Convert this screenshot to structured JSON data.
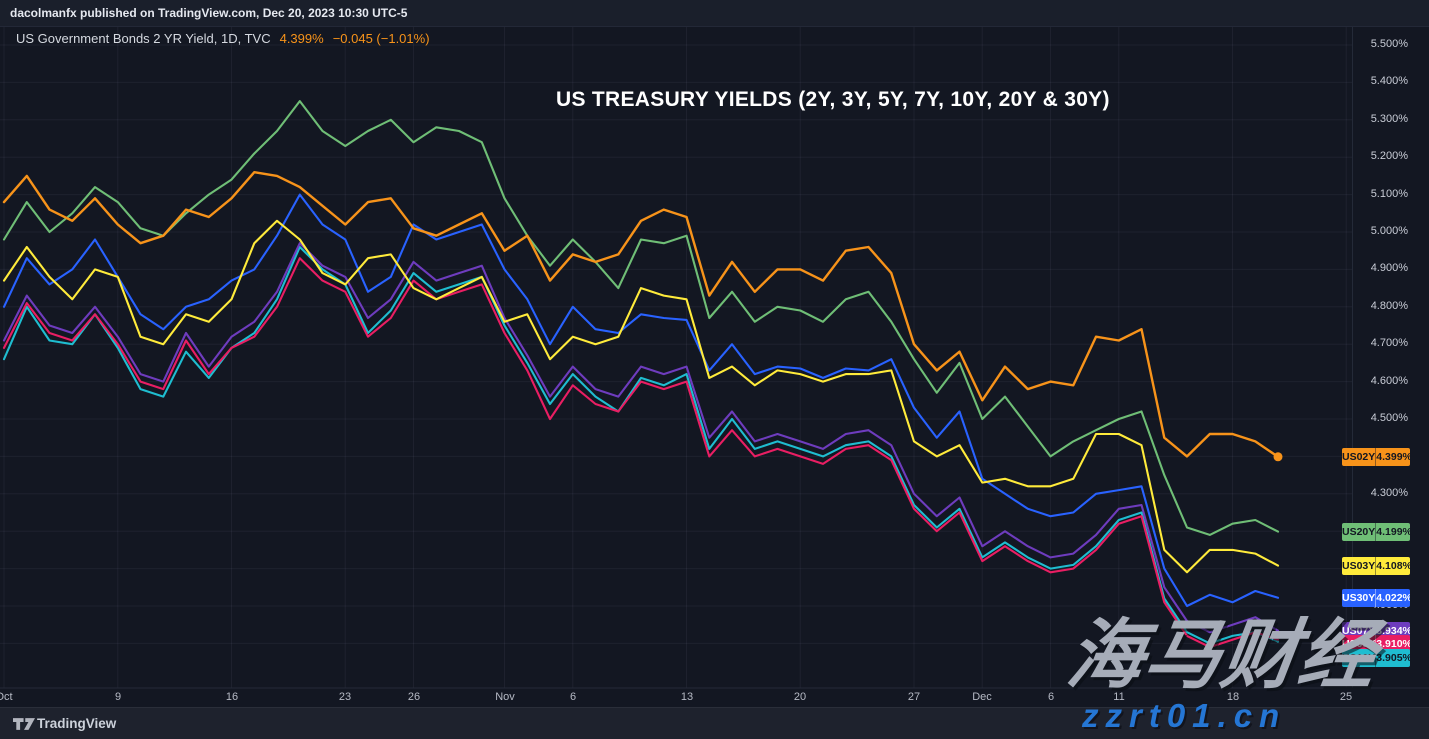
{
  "publish_bar": {
    "text": "dacolmanfx published on TradingView.com, Dec 20, 2023 10:30 UTC-5"
  },
  "chart_header": {
    "symbol": "US Government Bonds 2 YR Yield, 1D, TVC",
    "last_price": "4.399%",
    "change": "−0.045 (−1.01%)",
    "accent_color": "#f7931a"
  },
  "overlay_title": "US TREASURY YIELDS (2Y, 3Y, 5Y, 7Y, 10Y, 20Y & 30Y)",
  "watermark": {
    "title": "海马财经",
    "url_text": "zzrt01.cn"
  },
  "footer": {
    "brand": "TradingView",
    "logo_icon": "tradingview-logo"
  },
  "colors": {
    "background": "#131722",
    "top_bar": "#1a1f2b",
    "footer_bar": "#1e222d",
    "grid": "rgba(139,149,173,0.09)",
    "axis_text": "#c9cdd7"
  },
  "y_axis": {
    "unit": "%",
    "visible_labels": [
      {
        "label": "5.500%",
        "value": 5.5
      },
      {
        "label": "5.400%",
        "value": 5.4
      },
      {
        "label": "5.300%",
        "value": 5.3
      },
      {
        "label": "5.200%",
        "value": 5.2
      },
      {
        "label": "5.100%",
        "value": 5.1
      },
      {
        "label": "5.000%",
        "value": 5.0
      },
      {
        "label": "4.900%",
        "value": 4.9
      },
      {
        "label": "4.800%",
        "value": 4.8
      },
      {
        "label": "4.700%",
        "value": 4.7
      },
      {
        "label": "4.600%",
        "value": 4.6
      },
      {
        "label": "4.500%",
        "value": 4.5
      },
      {
        "label": "4.300%",
        "value": 4.3
      },
      {
        "label": "4.000%",
        "value": 4.0
      }
    ]
  },
  "x_axis": {
    "ticks": [
      {
        "label": "Oct",
        "day": 0
      },
      {
        "label": "9",
        "day": 5
      },
      {
        "label": "16",
        "day": 10
      },
      {
        "label": "23",
        "day": 15
      },
      {
        "label": "26",
        "day": 18
      },
      {
        "label": "Nov",
        "day": 22
      },
      {
        "label": "6",
        "day": 25
      },
      {
        "label": "13",
        "day": 30
      },
      {
        "label": "20",
        "day": 35
      },
      {
        "label": "27",
        "day": 40
      },
      {
        "label": "Dec",
        "day": 43
      },
      {
        "label": "6",
        "day": 46
      },
      {
        "label": "11",
        "day": 49
      },
      {
        "label": "18",
        "day": 54
      },
      {
        "label": "25",
        "day": 59
      }
    ]
  },
  "price_badges": [
    {
      "symbol": "US02Y",
      "value_label": "4.399%",
      "value": 4.399,
      "color": "#f7931a",
      "text_color": "#131722"
    },
    {
      "symbol": "US20Y",
      "value_label": "4.199%",
      "value": 4.199,
      "color": "#6fbe76",
      "text_color": "#131722"
    },
    {
      "symbol": "US03Y",
      "value_label": "4.108%",
      "value": 4.108,
      "color": "#ffeb3b",
      "text_color": "#131722"
    },
    {
      "symbol": "US30Y",
      "value_label": "4.022%",
      "value": 4.022,
      "color": "#2962ff",
      "text_color": "#ffffff"
    },
    {
      "symbol": "US07Y",
      "value_label": "3.934%",
      "value": 3.934,
      "color": "#6e3cbe",
      "text_color": "#ffffff"
    },
    {
      "symbol": "US05Y",
      "value_label": "3.910%",
      "value": 3.91,
      "color": "#e91e63",
      "text_color": "#ffffff"
    },
    {
      "symbol": "US10Y",
      "value_label": "3.905%",
      "value": 3.905,
      "color": "#1fbdd0",
      "text_color": "#131722"
    }
  ],
  "chart_data": {
    "type": "line",
    "title": "US TREASURY YIELDS (2Y, 3Y, 5Y, 7Y, 10Y, 20Y & 30Y)",
    "x_range_label": "Oct – Dec 2023, daily bars",
    "ylim": [
      3.85,
      5.55
    ],
    "grid": true,
    "legend_position": "right-scale price badges",
    "n_points": 57,
    "series": [
      {
        "name": "US02Y",
        "label": "US Government Bonds 2 YR Yield",
        "color": "#f7931a",
        "last_label": "4.399%",
        "values": [
          5.08,
          5.15,
          5.06,
          5.03,
          5.09,
          5.02,
          4.97,
          4.99,
          5.06,
          5.04,
          5.09,
          5.16,
          5.15,
          5.12,
          5.07,
          5.02,
          5.08,
          5.09,
          5.01,
          4.99,
          5.02,
          5.05,
          4.95,
          4.99,
          4.87,
          4.94,
          4.92,
          4.94,
          5.03,
          5.06,
          5.04,
          4.83,
          4.92,
          4.84,
          4.9,
          4.9,
          4.87,
          4.95,
          4.96,
          4.89,
          4.7,
          4.63,
          4.68,
          4.55,
          4.64,
          4.58,
          4.6,
          4.59,
          4.72,
          4.71,
          4.74,
          4.45,
          4.4,
          4.46,
          4.46,
          4.44,
          4.399
        ]
      },
      {
        "name": "US03Y",
        "label": "US Government Bonds 3 YR Yield",
        "color": "#ffeb3b",
        "last_label": "4.108%",
        "values": [
          4.87,
          4.96,
          4.88,
          4.82,
          4.9,
          4.88,
          4.72,
          4.7,
          4.78,
          4.76,
          4.82,
          4.97,
          5.03,
          4.98,
          4.89,
          4.86,
          4.93,
          4.94,
          4.85,
          4.82,
          4.85,
          4.88,
          4.76,
          4.78,
          4.66,
          4.72,
          4.7,
          4.72,
          4.85,
          4.83,
          4.82,
          4.61,
          4.64,
          4.59,
          4.63,
          4.62,
          4.6,
          4.62,
          4.62,
          4.63,
          4.44,
          4.4,
          4.43,
          4.33,
          4.34,
          4.32,
          4.32,
          4.34,
          4.46,
          4.46,
          4.43,
          4.15,
          4.09,
          4.15,
          4.15,
          4.14,
          4.108
        ]
      },
      {
        "name": "US05Y",
        "label": "US Government Bonds 5 YR Yield",
        "color": "#e91e63",
        "last_label": "3.910%",
        "values": [
          4.69,
          4.81,
          4.73,
          4.71,
          4.78,
          4.7,
          4.6,
          4.58,
          4.71,
          4.62,
          4.69,
          4.72,
          4.8,
          4.93,
          4.87,
          4.84,
          4.72,
          4.77,
          4.87,
          4.82,
          4.84,
          4.86,
          4.73,
          4.63,
          4.5,
          4.59,
          4.54,
          4.52,
          4.6,
          4.58,
          4.6,
          4.4,
          4.47,
          4.4,
          4.42,
          4.4,
          4.38,
          4.42,
          4.43,
          4.39,
          4.26,
          4.2,
          4.25,
          4.12,
          4.16,
          4.12,
          4.09,
          4.1,
          4.15,
          4.22,
          4.24,
          4.01,
          3.92,
          3.89,
          3.91,
          3.93,
          3.91
        ]
      },
      {
        "name": "US07Y",
        "label": "US Government Bonds 7 YR Yield",
        "color": "#6e3cbe",
        "last_label": "3.934%",
        "values": [
          4.71,
          4.83,
          4.75,
          4.73,
          4.8,
          4.72,
          4.62,
          4.6,
          4.73,
          4.64,
          4.72,
          4.76,
          4.84,
          4.97,
          4.91,
          4.88,
          4.77,
          4.82,
          4.92,
          4.87,
          4.89,
          4.91,
          4.77,
          4.67,
          4.56,
          4.64,
          4.58,
          4.56,
          4.64,
          4.62,
          4.64,
          4.45,
          4.52,
          4.44,
          4.46,
          4.44,
          4.42,
          4.46,
          4.47,
          4.43,
          4.3,
          4.24,
          4.29,
          4.16,
          4.2,
          4.16,
          4.13,
          4.14,
          4.19,
          4.26,
          4.27,
          4.05,
          3.96,
          3.93,
          3.95,
          3.97,
          3.934
        ]
      },
      {
        "name": "US10Y",
        "label": "US Government Bonds 10 YR Yield",
        "color": "#1fbdd0",
        "last_label": "3.905%",
        "values": [
          4.66,
          4.8,
          4.71,
          4.7,
          4.78,
          4.69,
          4.58,
          4.56,
          4.68,
          4.61,
          4.69,
          4.73,
          4.82,
          4.96,
          4.9,
          4.86,
          4.73,
          4.79,
          4.89,
          4.84,
          4.86,
          4.88,
          4.75,
          4.65,
          4.54,
          4.62,
          4.56,
          4.52,
          4.61,
          4.59,
          4.62,
          4.42,
          4.5,
          4.42,
          4.44,
          4.42,
          4.4,
          4.43,
          4.44,
          4.4,
          4.27,
          4.21,
          4.26,
          4.13,
          4.17,
          4.13,
          4.1,
          4.11,
          4.16,
          4.23,
          4.25,
          4.02,
          3.93,
          3.9,
          3.92,
          3.93,
          3.905
        ]
      },
      {
        "name": "US20Y",
        "label": "US Government Bonds 20 YR Yield",
        "color": "#6fbe76",
        "last_label": "4.199%",
        "values": [
          4.98,
          5.08,
          5.0,
          5.05,
          5.12,
          5.08,
          5.01,
          4.99,
          5.05,
          5.1,
          5.14,
          5.21,
          5.27,
          5.35,
          5.27,
          5.23,
          5.27,
          5.3,
          5.24,
          5.28,
          5.27,
          5.24,
          5.09,
          4.99,
          4.91,
          4.98,
          4.92,
          4.85,
          4.98,
          4.97,
          4.99,
          4.77,
          4.84,
          4.76,
          4.8,
          4.79,
          4.76,
          4.82,
          4.84,
          4.76,
          4.66,
          4.57,
          4.65,
          4.5,
          4.56,
          4.48,
          4.4,
          4.44,
          4.47,
          4.5,
          4.52,
          4.35,
          4.21,
          4.19,
          4.22,
          4.23,
          4.199
        ]
      },
      {
        "name": "US30Y",
        "label": "US Government Bonds 30 YR Yield",
        "color": "#2962ff",
        "last_label": "4.022%",
        "values": [
          4.8,
          4.93,
          4.86,
          4.9,
          4.98,
          4.88,
          4.78,
          4.74,
          4.8,
          4.82,
          4.87,
          4.9,
          4.99,
          5.1,
          5.02,
          4.98,
          4.84,
          4.88,
          5.02,
          4.98,
          5.0,
          5.02,
          4.9,
          4.82,
          4.7,
          4.8,
          4.74,
          4.73,
          4.78,
          4.77,
          4.765,
          4.63,
          4.7,
          4.62,
          4.64,
          4.635,
          4.61,
          4.635,
          4.63,
          4.66,
          4.53,
          4.45,
          4.52,
          4.34,
          4.3,
          4.26,
          4.24,
          4.25,
          4.3,
          4.31,
          4.32,
          4.1,
          4.0,
          4.03,
          4.01,
          4.04,
          4.022
        ]
      }
    ]
  }
}
